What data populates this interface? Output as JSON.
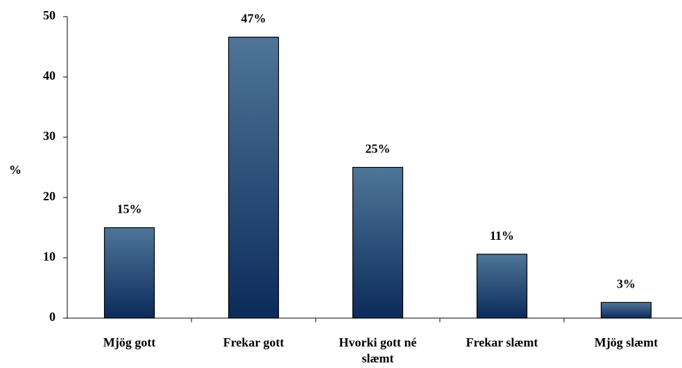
{
  "chart_data": {
    "type": "bar",
    "y_label": "%",
    "categories": [
      "Mjög gott",
      "Frekar gott",
      "Hvorki gott né slæmt",
      "Frekar slæmt",
      "Mjög slæmt"
    ],
    "values": [
      15,
      46.6,
      25,
      10.6,
      2.6
    ],
    "value_labels": [
      "15%",
      "47%",
      "25%",
      "11%",
      "3%"
    ],
    "gradient": [
      "#4f7598",
      "#0b2b5b"
    ],
    "ylim": [
      0,
      50
    ],
    "yticks": [
      0,
      10,
      20,
      30,
      40,
      50
    ],
    "grid": false
  }
}
